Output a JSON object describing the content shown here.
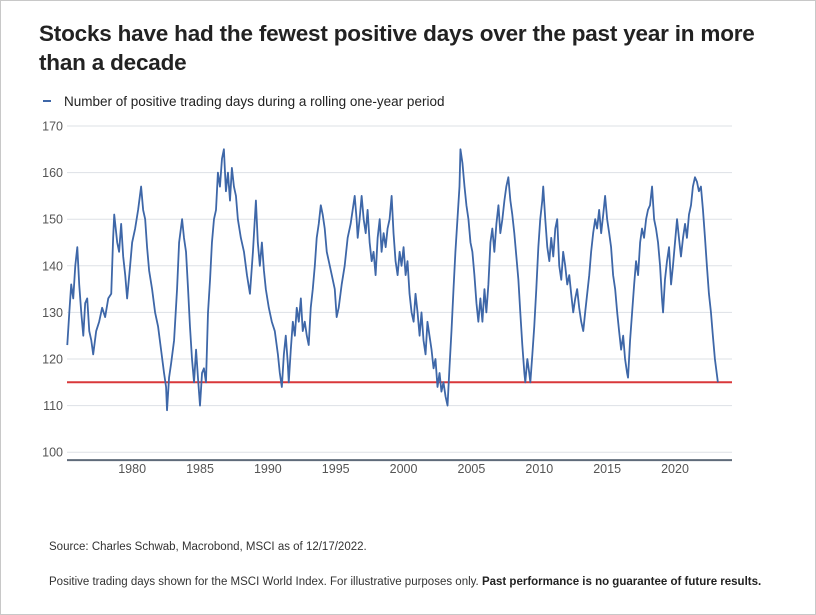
{
  "title": "Stocks have had the fewest positive days over the past year in more than a decade",
  "legend": {
    "label": "Number of positive trading days during a rolling one-year period",
    "color": "#3e67a8"
  },
  "footer": {
    "source": "Source: Charles Schwab, Macrobond, MSCI as of 12/17/2022.",
    "note": "Positive trading days shown for the MSCI World Index. For illustrative purposes only. ",
    "disclaimer": "Past performance is no guarantee of future results."
  },
  "chart_data": {
    "type": "line",
    "title": "Stocks have had the fewest positive days over the past year in more than a decade",
    "xlabel": "",
    "ylabel": "",
    "xlim": [
      1975.2,
      2024.2
    ],
    "ylim": [
      98.3,
      170
    ],
    "yticks": [
      100,
      110,
      120,
      130,
      140,
      150,
      160,
      170
    ],
    "xticks": [
      1980,
      1985,
      1990,
      1995,
      2000,
      2005,
      2010,
      2015,
      2020
    ],
    "grid": true,
    "legend_position": "top-left",
    "reference_line": {
      "value": 115,
      "color": "#d9383a"
    },
    "series": [
      {
        "name": "Number of positive trading days during a rolling one-year period",
        "color": "#3e67a8",
        "x": [
          1975.22,
          1975.37,
          1975.51,
          1975.66,
          1975.81,
          1975.96,
          1976.1,
          1976.25,
          1976.4,
          1976.54,
          1976.69,
          1976.84,
          1976.99,
          1977.13,
          1977.35,
          1977.57,
          1977.79,
          1978.01,
          1978.24,
          1978.46,
          1978.6,
          1978.68,
          1978.9,
          1979.04,
          1979.19,
          1979.34,
          1979.49,
          1979.63,
          1979.85,
          1980.0,
          1980.22,
          1980.44,
          1980.66,
          1980.81,
          1980.96,
          1981.1,
          1981.25,
          1981.47,
          1981.69,
          1981.91,
          1982.13,
          1982.35,
          1982.5,
          1982.57,
          1982.72,
          1982.87,
          1983.09,
          1983.31,
          1983.46,
          1983.68,
          1983.82,
          1983.97,
          1984.12,
          1984.26,
          1984.41,
          1984.56,
          1984.71,
          1984.85,
          1985.0,
          1985.15,
          1985.29,
          1985.44,
          1985.59,
          1985.74,
          1985.88,
          1986.03,
          1986.18,
          1986.32,
          1986.47,
          1986.62,
          1986.76,
          1986.91,
          1987.06,
          1987.21,
          1987.35,
          1987.5,
          1987.65,
          1987.79,
          1988.01,
          1988.24,
          1988.46,
          1988.68,
          1988.9,
          1989.12,
          1989.26,
          1989.41,
          1989.56,
          1989.71,
          1989.85,
          1990.07,
          1990.29,
          1990.51,
          1990.74,
          1990.88,
          1991.03,
          1991.18,
          1991.32,
          1991.47,
          1991.54,
          1991.69,
          1991.84,
          1991.99,
          1992.13,
          1992.28,
          1992.43,
          1992.57,
          1992.72,
          1992.87,
          1993.01,
          1993.16,
          1993.31,
          1993.46,
          1993.6,
          1993.75,
          1993.9,
          1994.04,
          1994.19,
          1994.34,
          1994.49,
          1994.71,
          1994.93,
          1995.07,
          1995.22,
          1995.44,
          1995.66,
          1995.88,
          1996.1,
          1996.25,
          1996.4,
          1996.54,
          1996.62,
          1996.76,
          1996.91,
          1997.06,
          1997.21,
          1997.35,
          1997.5,
          1997.65,
          1997.79,
          1997.94,
          1998.09,
          1998.24,
          1998.38,
          1998.53,
          1998.68,
          1998.82,
          1998.97,
          1999.12,
          1999.26,
          1999.41,
          1999.56,
          1999.71,
          1999.85,
          2000.0,
          2000.15,
          2000.29,
          2000.44,
          2000.59,
          2000.74,
          2000.88,
          2001.03,
          2001.18,
          2001.32,
          2001.47,
          2001.62,
          2001.76,
          2001.91,
          2002.06,
          2002.21,
          2002.35,
          2002.5,
          2002.65,
          2002.79,
          2002.94,
          2003.09,
          2003.24,
          2003.38,
          2003.53,
          2003.68,
          2003.82,
          2003.97,
          2004.12,
          2004.19,
          2004.34,
          2004.49,
          2004.63,
          2004.78,
          2004.93,
          2005.07,
          2005.22,
          2005.37,
          2005.51,
          2005.66,
          2005.81,
          2005.96,
          2006.1,
          2006.25,
          2006.4,
          2006.54,
          2006.69,
          2006.84,
          2006.99,
          2007.13,
          2007.28,
          2007.43,
          2007.57,
          2007.72,
          2007.87,
          2008.01,
          2008.16,
          2008.31,
          2008.46,
          2008.6,
          2008.75,
          2008.9,
          2008.97,
          2009.12,
          2009.26,
          2009.34,
          2009.49,
          2009.63,
          2009.78,
          2009.93,
          2010.07,
          2010.22,
          2010.29,
          2010.44,
          2010.59,
          2010.74,
          2010.88,
          2011.03,
          2011.18,
          2011.32,
          2011.47,
          2011.62,
          2011.76,
          2011.91,
          2012.06,
          2012.21,
          2012.35,
          2012.5,
          2012.65,
          2012.79,
          2012.94,
          2013.09,
          2013.24,
          2013.38,
          2013.53,
          2013.68,
          2013.82,
          2013.97,
          2014.12,
          2014.26,
          2014.41,
          2014.56,
          2014.71,
          2014.85,
          2015.0,
          2015.15,
          2015.29,
          2015.44,
          2015.59,
          2015.74,
          2015.88,
          2016.03,
          2016.18,
          2016.32,
          2016.47,
          2016.54,
          2016.69,
          2016.84,
          2016.99,
          2017.13,
          2017.28,
          2017.43,
          2017.57,
          2017.72,
          2017.87,
          2018.01,
          2018.16,
          2018.31,
          2018.46,
          2018.6,
          2018.75,
          2018.9,
          2019.04,
          2019.12,
          2019.26,
          2019.41,
          2019.56,
          2019.71,
          2019.85,
          2020.0,
          2020.15,
          2020.29,
          2020.44,
          2020.59,
          2020.74,
          2020.88,
          2021.03,
          2021.18,
          2021.32,
          2021.47,
          2021.62,
          2021.76,
          2021.91,
          2022.06,
          2022.21,
          2022.35,
          2022.5,
          2022.65,
          2022.79,
          2022.94,
          2023.16
        ],
        "values": [
          123,
          130,
          136,
          133,
          140,
          144,
          136,
          130,
          125,
          132,
          133,
          126,
          124,
          121,
          126,
          128,
          131,
          129,
          133,
          134,
          146,
          151,
          145,
          143,
          149,
          142,
          138,
          133,
          140,
          145,
          148,
          152,
          157,
          152,
          150,
          144,
          139,
          135,
          130,
          127,
          122,
          117,
          114,
          109,
          116,
          119,
          124,
          135,
          145,
          150,
          146,
          143,
          135,
          127,
          120,
          115,
          122,
          116,
          110,
          117,
          118,
          115,
          130,
          137,
          145,
          150,
          152,
          160,
          157,
          163,
          165,
          156,
          160,
          154,
          161,
          157,
          155,
          150,
          146,
          143,
          138,
          134,
          143,
          154,
          145,
          140,
          145,
          139,
          135,
          131,
          128,
          126,
          121,
          117,
          114,
          121,
          125,
          119,
          115,
          122,
          128,
          125,
          131,
          128,
          133,
          126,
          128,
          125,
          123,
          131,
          135,
          140,
          146,
          149,
          153,
          151,
          148,
          143,
          141,
          138,
          135,
          129,
          131,
          136,
          140,
          146,
          149,
          152,
          155,
          150,
          146,
          150,
          155,
          150,
          147,
          152,
          145,
          141,
          143,
          138,
          146,
          150,
          143,
          147,
          144,
          148,
          150,
          155,
          147,
          141,
          138,
          143,
          140,
          144,
          138,
          141,
          134,
          130,
          128,
          134,
          130,
          125,
          130,
          124,
          121,
          128,
          125,
          122,
          118,
          120,
          114,
          117,
          113,
          115,
          112,
          110,
          118,
          126,
          135,
          143,
          150,
          157,
          165,
          162,
          157,
          153,
          150,
          145,
          143,
          138,
          132,
          128,
          133,
          128,
          135,
          130,
          136,
          145,
          148,
          143,
          149,
          153,
          147,
          150,
          154,
          157,
          159,
          154,
          151,
          147,
          142,
          137,
          130,
          123,
          117,
          115,
          120,
          117,
          115,
          121,
          127,
          135,
          144,
          150,
          154,
          157,
          150,
          144,
          141,
          146,
          142,
          148,
          150,
          140,
          137,
          143,
          140,
          136,
          138,
          134,
          130,
          133,
          135,
          131,
          128,
          126,
          130,
          134,
          138,
          143,
          147,
          150,
          148,
          152,
          147,
          151,
          155,
          150,
          147,
          144,
          138,
          135,
          130,
          126,
          122,
          125,
          120,
          117,
          116,
          124,
          130,
          136,
          141,
          138,
          145,
          148,
          146,
          150,
          152,
          153,
          157,
          150,
          148,
          145,
          140,
          133,
          130,
          137,
          141,
          144,
          136,
          140,
          145,
          150,
          146,
          142,
          146,
          149,
          146,
          151,
          153,
          157,
          159,
          158,
          156,
          157,
          152,
          146,
          140,
          134,
          130,
          125,
          120,
          115
        ]
      }
    ]
  }
}
